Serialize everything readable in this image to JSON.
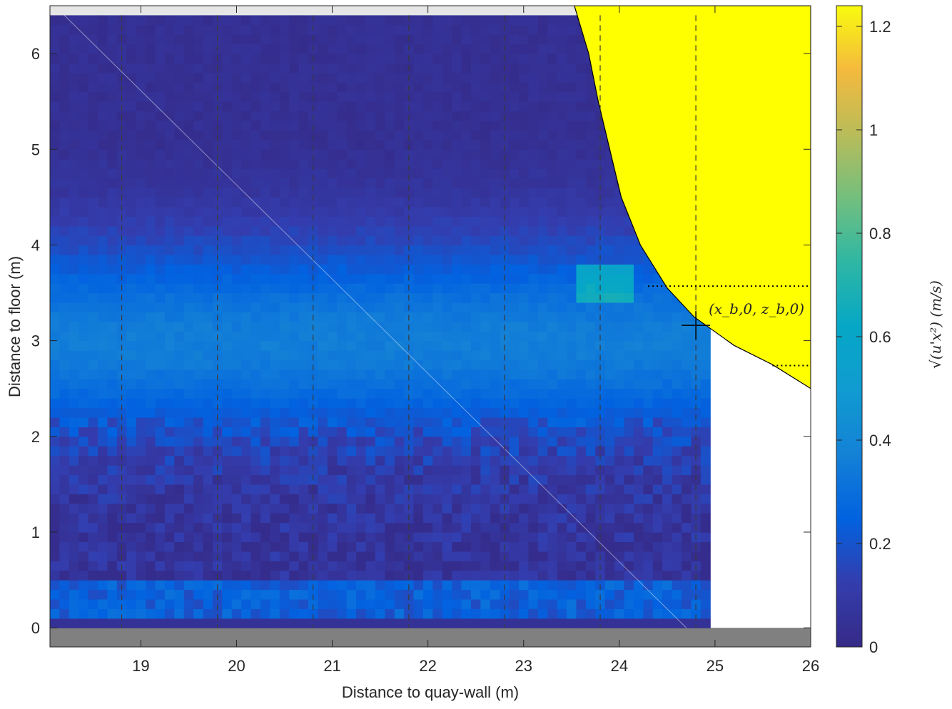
{
  "chart_data": {
    "type": "heatmap",
    "xlabel": "Distance to quay-wall (m)",
    "ylabel": "Distance to floor (m)",
    "colorbar_label": "√(u'x²) (m/s)",
    "annotation": "(x_b,0, z_b,0)",
    "xlim": [
      18.05,
      26
    ],
    "ylim": [
      -0.2,
      6.5
    ],
    "x_ticks": [
      19,
      20,
      21,
      22,
      23,
      24,
      25,
      26
    ],
    "y_ticks": [
      0,
      1,
      2,
      3,
      4,
      5,
      6
    ],
    "colorbar_ticks": [
      0,
      0.2,
      0.4,
      0.6,
      0.8,
      1,
      1.2
    ],
    "colorbar_range": [
      0,
      1.24
    ],
    "colormap": "parula",
    "grid": false,
    "vertical_dashed_lines_x": [
      18.8,
      19.8,
      20.8,
      21.8,
      22.8,
      23.8,
      24.8
    ],
    "marker": {
      "x": 24.8,
      "z": 3.16
    },
    "dotted_levels": [
      {
        "x_start": 24.3,
        "x_end": 26,
        "z": 3.57
      },
      {
        "x_start": 25.6,
        "x_end": 26,
        "z": 2.74
      }
    ],
    "field_extent": {
      "x": [
        18.05,
        24.95
      ],
      "z": [
        0.0,
        6.4
      ]
    },
    "yellow_region_color": "#ffff00",
    "floor_color": "#808080",
    "top_strip_color": "#e6e6e6",
    "bubble_boundary": [
      [
        23.53,
        6.5
      ],
      [
        23.68,
        6.0
      ],
      [
        23.78,
        5.5
      ],
      [
        23.9,
        5.0
      ],
      [
        24.02,
        4.5
      ],
      [
        24.22,
        4.0
      ],
      [
        24.5,
        3.55
      ],
      [
        24.78,
        3.25
      ],
      [
        25.2,
        2.95
      ],
      [
        25.6,
        2.75
      ],
      [
        26.0,
        2.5
      ]
    ]
  }
}
